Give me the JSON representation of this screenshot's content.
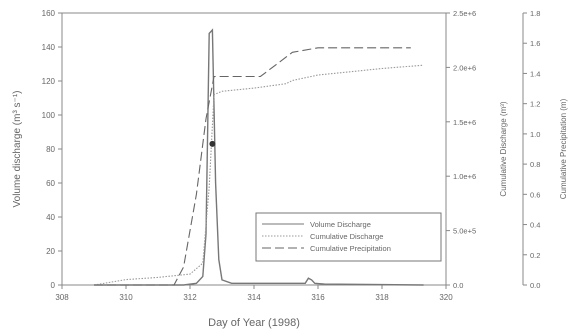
{
  "chart_data": {
    "type": "line",
    "xlabel": "Day of Year (1998)",
    "ylabel_left": "Volume discharge (m³ s⁻¹)",
    "ylabel_right1": "Cumulative Discharge (m³)",
    "ylabel_right2": "Cumulative Precipitation (m)",
    "xlim": [
      308,
      320
    ],
    "x_ticks": [
      "308",
      "310",
      "312",
      "314",
      "316",
      "318",
      "320"
    ],
    "ylim_left": [
      0,
      160
    ],
    "y_ticks_left": [
      "0",
      "20",
      "40",
      "60",
      "80",
      "100",
      "120",
      "140",
      "160"
    ],
    "ylim_right1": [
      0,
      2500000
    ],
    "y_ticks_right1": [
      "0.0",
      "5.0e+5",
      "1.0e+6",
      "1.5e+6",
      "2.0e+6",
      "2.5e+6"
    ],
    "ylim_right2": [
      0,
      1.8
    ],
    "y_ticks_right2": [
      "0.0",
      "0.2",
      "0.4",
      "0.6",
      "0.8",
      "1.0",
      "1.2",
      "1.4",
      "1.6",
      "1.8"
    ],
    "legend_position": "lower-right",
    "series": [
      {
        "name": "Volume Discharge",
        "axis": "left",
        "style": "solid",
        "color": "#777777",
        "x": [
          309.0,
          311.8,
          312.2,
          312.4,
          312.5,
          312.6,
          312.7,
          312.8,
          312.9,
          313.0,
          313.3,
          315.6,
          315.7,
          315.8,
          315.9,
          316.2,
          319.3
        ],
        "y": [
          0,
          0,
          1,
          5,
          30,
          148,
          150,
          60,
          15,
          3,
          1,
          1,
          4,
          3,
          1,
          0.5,
          0
        ]
      },
      {
        "name": "Cumulative Discharge",
        "axis": "right1",
        "style": "dotted",
        "color": "#999999",
        "x": [
          309.0,
          310.0,
          311.0,
          312.0,
          312.4,
          312.6,
          312.75,
          313.0,
          314.0,
          315.0,
          315.2,
          316.0,
          317.0,
          318.0,
          319.3
        ],
        "y": [
          0,
          50000,
          70000,
          100000,
          200000,
          900000,
          1750000,
          1780000,
          1810000,
          1850000,
          1880000,
          1930000,
          1960000,
          1990000,
          2020000
        ]
      },
      {
        "name": "Cumulative Precipitation",
        "axis": "right2",
        "style": "dashed",
        "color": "#666666",
        "x": [
          309.0,
          311.5,
          311.8,
          312.2,
          312.5,
          312.75,
          313.0,
          314.2,
          314.7,
          315.2,
          316.0,
          318.9
        ],
        "y": [
          0.0,
          0.0,
          0.12,
          0.6,
          1.1,
          1.38,
          1.38,
          1.38,
          1.46,
          1.54,
          1.57,
          1.57
        ]
      }
    ],
    "marker": {
      "x": 312.7,
      "y": 83,
      "axis": "left"
    }
  }
}
